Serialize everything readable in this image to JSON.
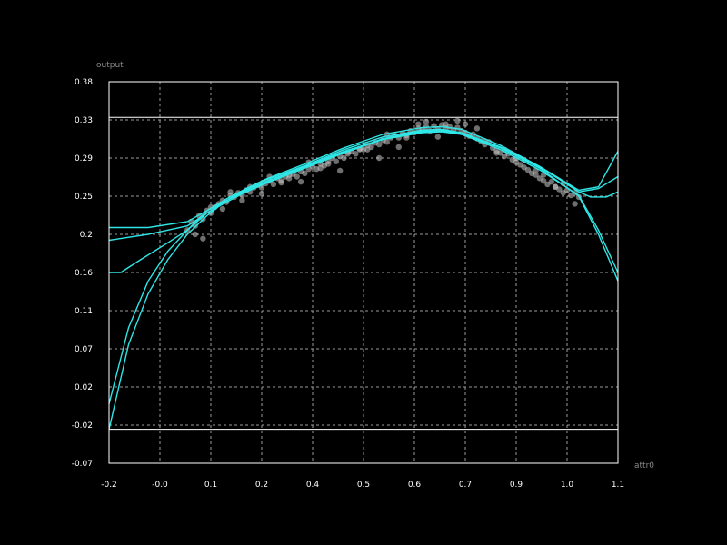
{
  "chart_data": {
    "type": "scatter",
    "xlabel": "attr0",
    "ylabel": "output",
    "xlim": [
      -0.2,
      1.1
    ],
    "ylim": [
      -0.07,
      0.38
    ],
    "x_ticks": [
      "-0.2",
      "-0.0",
      "0.1",
      "0.2",
      "0.4",
      "0.5",
      "0.6",
      "0.7",
      "0.9",
      "1.0",
      "1.1"
    ],
    "y_ticks": [
      "0.38",
      "0.33",
      "0.29",
      "0.25",
      "0.2",
      "0.16",
      "0.11",
      "0.07",
      "0.02",
      "-0.02",
      "-0.07"
    ],
    "grid": true,
    "hlines": [
      0.338,
      -0.03
    ],
    "scatter": {
      "x": [
        0.0,
        0.01,
        0.02,
        0.03,
        0.04,
        0.05,
        0.06,
        0.07,
        0.08,
        0.09,
        0.1,
        0.11,
        0.12,
        0.13,
        0.14,
        0.15,
        0.16,
        0.17,
        0.18,
        0.19,
        0.2,
        0.21,
        0.22,
        0.23,
        0.24,
        0.25,
        0.26,
        0.27,
        0.28,
        0.29,
        0.3,
        0.31,
        0.32,
        0.33,
        0.34,
        0.35,
        0.36,
        0.37,
        0.38,
        0.39,
        0.4,
        0.41,
        0.42,
        0.43,
        0.44,
        0.45,
        0.46,
        0.47,
        0.48,
        0.49,
        0.5,
        0.51,
        0.52,
        0.53,
        0.54,
        0.55,
        0.56,
        0.57,
        0.58,
        0.59,
        0.6,
        0.61,
        0.62,
        0.63,
        0.64,
        0.65,
        0.66,
        0.67,
        0.68,
        0.69,
        0.7,
        0.71,
        0.72,
        0.73,
        0.74,
        0.75,
        0.76,
        0.77,
        0.78,
        0.79,
        0.8,
        0.81,
        0.82,
        0.83,
        0.84,
        0.85,
        0.86,
        0.87,
        0.88,
        0.89,
        0.9,
        0.91,
        0.92,
        0.93,
        0.94,
        0.95,
        0.96,
        0.97,
        0.98,
        0.99,
        1.0,
        0.02,
        0.06,
        0.11,
        0.16,
        0.21,
        0.26,
        0.31,
        0.36,
        0.41,
        0.46,
        0.51,
        0.56,
        0.61,
        0.66,
        0.71,
        0.76,
        0.81,
        0.86,
        0.91,
        0.96,
        0.04,
        0.09,
        0.14,
        0.19,
        0.24,
        0.29,
        0.34,
        0.39,
        0.44,
        0.49,
        0.54,
        0.59,
        0.64,
        0.69,
        0.74,
        0.79,
        0.84,
        0.89,
        0.94,
        0.99
      ],
      "y": [
        0.205,
        0.215,
        0.21,
        0.222,
        0.218,
        0.228,
        0.225,
        0.232,
        0.236,
        0.24,
        0.238,
        0.246,
        0.244,
        0.249,
        0.246,
        0.252,
        0.25,
        0.255,
        0.258,
        0.255,
        0.26,
        0.263,
        0.259,
        0.266,
        0.263,
        0.268,
        0.266,
        0.271,
        0.268,
        0.274,
        0.272,
        0.277,
        0.28,
        0.277,
        0.283,
        0.281,
        0.286,
        0.29,
        0.286,
        0.292,
        0.29,
        0.295,
        0.298,
        0.295,
        0.301,
        0.3,
        0.305,
        0.303,
        0.308,
        0.306,
        0.311,
        0.309,
        0.314,
        0.317,
        0.314,
        0.319,
        0.317,
        0.322,
        0.32,
        0.325,
        0.323,
        0.327,
        0.322,
        0.328,
        0.324,
        0.329,
        0.325,
        0.327,
        0.323,
        0.326,
        0.322,
        0.32,
        0.316,
        0.318,
        0.313,
        0.31,
        0.306,
        0.309,
        0.302,
        0.299,
        0.296,
        0.292,
        0.295,
        0.288,
        0.285,
        0.282,
        0.279,
        0.276,
        0.272,
        0.27,
        0.266,
        0.263,
        0.259,
        0.262,
        0.256,
        0.253,
        0.249,
        0.252,
        0.246,
        0.249,
        0.244,
        0.2,
        0.232,
        0.25,
        0.256,
        0.268,
        0.27,
        0.285,
        0.283,
        0.297,
        0.3,
        0.318,
        0.314,
        0.333,
        0.33,
        0.33,
        0.31,
        0.3,
        0.288,
        0.27,
        0.26,
        0.195,
        0.23,
        0.24,
        0.248,
        0.261,
        0.262,
        0.278,
        0.275,
        0.3,
        0.29,
        0.303,
        0.33,
        0.315,
        0.334,
        0.325,
        0.296,
        0.29,
        0.275,
        0.256,
        0.236
      ]
    },
    "series": [
      {
        "x": [
          -0.2,
          -0.15,
          -0.1,
          -0.05,
          0.0,
          0.05,
          0.1,
          0.15,
          0.2,
          0.3,
          0.4,
          0.5,
          0.6,
          0.65,
          0.7,
          0.8,
          0.9,
          1.0,
          1.05,
          1.1
        ],
        "y": [
          -0.03,
          0.07,
          0.13,
          0.17,
          0.2,
          0.222,
          0.24,
          0.253,
          0.264,
          0.281,
          0.3,
          0.315,
          0.323,
          0.324,
          0.32,
          0.302,
          0.278,
          0.245,
          0.2,
          0.145
        ]
      },
      {
        "x": [
          -0.2,
          -0.15,
          -0.1,
          -0.05,
          0.0,
          0.05,
          0.1,
          0.15,
          0.2,
          0.3,
          0.4,
          0.5,
          0.6,
          0.65,
          0.7,
          0.8,
          0.9,
          1.0,
          1.05,
          1.1
        ],
        "y": [
          0.0,
          0.09,
          0.145,
          0.18,
          0.205,
          0.225,
          0.24,
          0.252,
          0.262,
          0.28,
          0.298,
          0.312,
          0.32,
          0.321,
          0.318,
          0.3,
          0.276,
          0.246,
          0.205,
          0.155
        ]
      },
      {
        "x": [
          -0.2,
          -0.17,
          -0.12,
          -0.05,
          0.0,
          0.05,
          0.1,
          0.15,
          0.2,
          0.3,
          0.4,
          0.5,
          0.6,
          0.65,
          0.7,
          0.8,
          0.9,
          1.0,
          1.03,
          1.07,
          1.1
        ],
        "y": [
          0.155,
          0.155,
          0.17,
          0.19,
          0.205,
          0.228,
          0.242,
          0.254,
          0.265,
          0.283,
          0.302,
          0.318,
          0.326,
          0.327,
          0.324,
          0.305,
          0.28,
          0.25,
          0.244,
          0.244,
          0.25
        ]
      },
      {
        "x": [
          -0.2,
          -0.1,
          0.0,
          0.05,
          0.1,
          0.15,
          0.2,
          0.3,
          0.4,
          0.5,
          0.6,
          0.65,
          0.7,
          0.8,
          0.9,
          0.95,
          1.0,
          1.05,
          1.1
        ],
        "y": [
          0.208,
          0.208,
          0.215,
          0.228,
          0.24,
          0.251,
          0.261,
          0.279,
          0.297,
          0.313,
          0.322,
          0.323,
          0.32,
          0.303,
          0.28,
          0.266,
          0.252,
          0.256,
          0.298
        ]
      },
      {
        "x": [
          -0.2,
          -0.1,
          0.0,
          0.05,
          0.1,
          0.15,
          0.2,
          0.3,
          0.4,
          0.5,
          0.6,
          0.65,
          0.7,
          0.8,
          0.9,
          0.95,
          1.0,
          1.05,
          1.1
        ],
        "y": [
          0.193,
          0.2,
          0.21,
          0.225,
          0.238,
          0.25,
          0.26,
          0.278,
          0.296,
          0.312,
          0.321,
          0.322,
          0.319,
          0.302,
          0.279,
          0.265,
          0.25,
          0.254,
          0.268
        ]
      }
    ]
  }
}
